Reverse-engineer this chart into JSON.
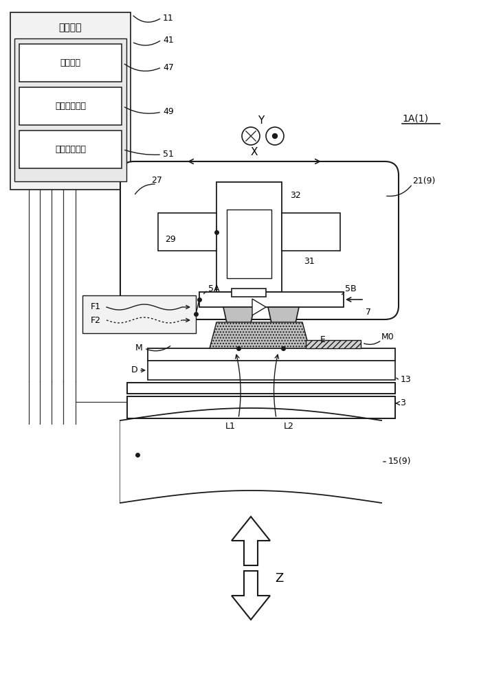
{
  "bg_color": "#ffffff",
  "lc": "#1a1a1a",
  "gray_box": "#f2f2f2",
  "gray_inner": "#e8e8e8",
  "gray_deposit": "#c0c0c0",
  "gray_hatch": "#b0b0b0",
  "label_11": "11",
  "label_41": "41",
  "label_47": "47",
  "label_49": "49",
  "label_51": "51",
  "label_27": "27",
  "label_21": "21(9)",
  "label_1A": "1A(1)",
  "label_29": "29",
  "label_32": "32",
  "label_31": "31",
  "label_5A": "5A",
  "label_5B": "5B",
  "label_7": "7",
  "label_M0": "M0",
  "label_M": "M",
  "label_E": "E",
  "label_D": "D",
  "label_13": "13",
  "label_L1": "L1",
  "label_L2": "L2",
  "label_3": "3",
  "label_15": "15(9)",
  "label_X": "X",
  "label_Y": "Y",
  "label_Z": "Z",
  "label_F1": "F1",
  "label_F2": "F2",
  "text_ctrl": "控制程序",
  "text_jet": "喷吐功能",
  "text_energy": "能量施加功能",
  "text_position": "位置控制功能",
  "figw": 6.97,
  "figh": 10.0,
  "dpi": 100
}
